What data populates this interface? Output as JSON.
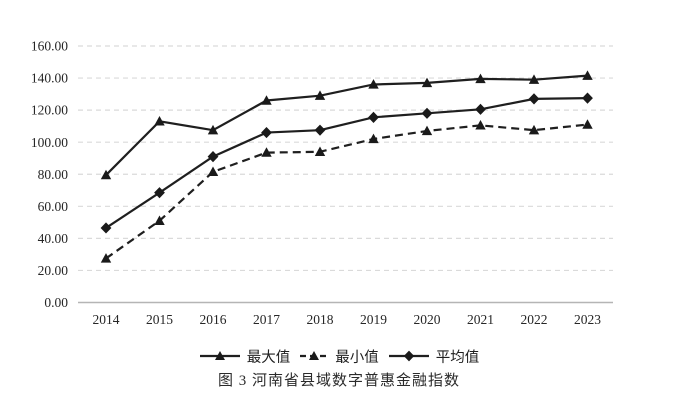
{
  "figure": {
    "caption": "图 3 河南省县域数字普惠金融指数"
  },
  "chart_data": {
    "type": "line",
    "title": "图 3 河南省县域数字普惠金融指数",
    "categories": [
      "2014",
      "2015",
      "2016",
      "2017",
      "2018",
      "2019",
      "2020",
      "2021",
      "2022",
      "2023"
    ],
    "series": [
      {
        "name": "最大值",
        "marker": "triangle",
        "line_style": "solid",
        "values": [
          79.5,
          113.0,
          107.5,
          126.0,
          129.0,
          136.0,
          137.0,
          139.5,
          139.0,
          141.5
        ]
      },
      {
        "name": "最小值",
        "marker": "triangle",
        "line_style": "dashed",
        "values": [
          27.5,
          51.0,
          81.5,
          93.5,
          94.0,
          102.0,
          107.0,
          110.5,
          107.5,
          111.0
        ]
      },
      {
        "name": "平均值",
        "marker": "diamond",
        "line_style": "solid",
        "values": [
          46.5,
          68.5,
          91.0,
          106.0,
          107.5,
          115.5,
          118.0,
          120.5,
          127.0,
          127.5
        ]
      }
    ],
    "y_axis": {
      "min": 0,
      "max": 160,
      "step": 20,
      "tick_labels": [
        "0.00",
        "20.00",
        "40.00",
        "60.00",
        "80.00",
        "100.00",
        "120.00",
        "140.00",
        "160.00"
      ]
    },
    "x_axis": {
      "tick_labels": [
        "2014",
        "2015",
        "2016",
        "2017",
        "2018",
        "2019",
        "2020",
        "2021",
        "2022",
        "2023"
      ]
    },
    "legend_position": "bottom",
    "grid": "horizontal-dashed",
    "colors": {
      "line": "#1f1f1f",
      "marker": "#1a1a1a",
      "grid": "#dadada",
      "axis": "#b5b5b5",
      "text": "#262626"
    }
  }
}
